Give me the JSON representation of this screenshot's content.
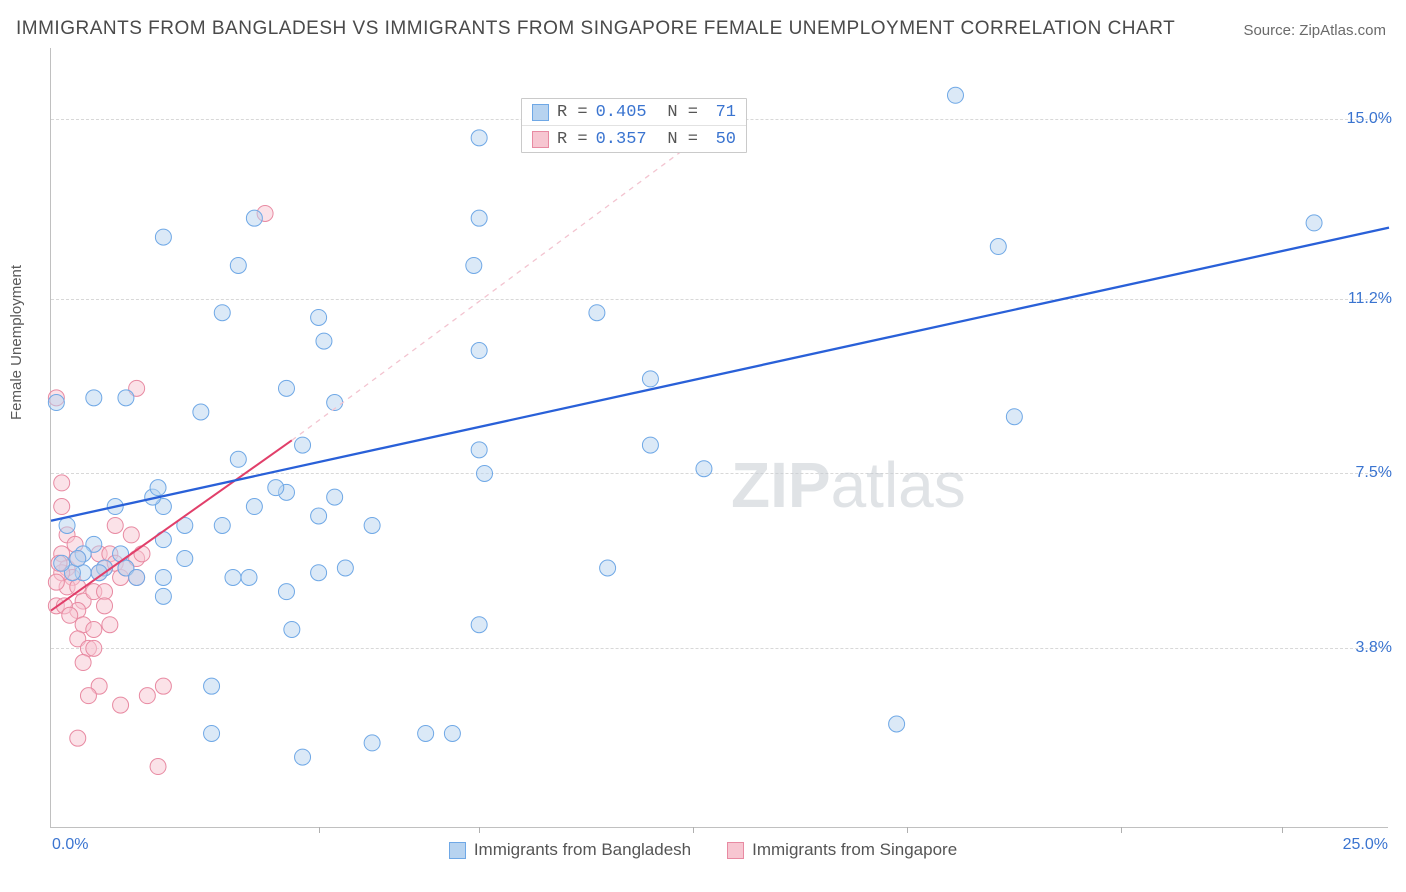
{
  "title": "IMMIGRANTS FROM BANGLADESH VS IMMIGRANTS FROM SINGAPORE FEMALE UNEMPLOYMENT CORRELATION CHART",
  "source": "Source: ZipAtlas.com",
  "ylabel": "Female Unemployment",
  "watermark": {
    "zip": "ZIP",
    "atlas": "atlas"
  },
  "chart": {
    "type": "scatter",
    "xlim": [
      0.0,
      25.0
    ],
    "ylim": [
      0.0,
      16.5
    ],
    "xaxis_label_min": "0.0%",
    "xaxis_label_max": "25.0%",
    "ytick_labels": [
      {
        "v": 3.8,
        "label": "3.8%"
      },
      {
        "v": 7.5,
        "label": "7.5%"
      },
      {
        "v": 11.2,
        "label": "11.2%"
      },
      {
        "v": 15.0,
        "label": "15.0%"
      }
    ],
    "xtick_positions": [
      5.0,
      8.0,
      12.0,
      16.0,
      20.0,
      23.0
    ],
    "background_color": "#ffffff",
    "grid_color": "#d8d8d8",
    "marker_radius": 8,
    "marker_opacity": 0.5,
    "series": [
      {
        "key": "bangladesh",
        "label": "Immigrants from Bangladesh",
        "color_fill": "#b7d3f0",
        "color_stroke": "#6fa8e6",
        "r": "R =",
        "r_value": "0.405",
        "n": "N =",
        "n_value": "71",
        "trend": {
          "x1": 0.0,
          "y1": 6.5,
          "x2": 25.0,
          "y2": 12.7,
          "ext_y2": 15.5,
          "color": "#2960d8",
          "width": 2.3,
          "dash_color": "#b6c9ec"
        },
        "points": [
          [
            16.9,
            15.5
          ],
          [
            23.6,
            12.8
          ],
          [
            17.7,
            12.3
          ],
          [
            18.0,
            8.7
          ],
          [
            8.0,
            14.6
          ],
          [
            8.0,
            12.9
          ],
          [
            7.9,
            11.9
          ],
          [
            10.2,
            10.9
          ],
          [
            8.0,
            10.1
          ],
          [
            8.0,
            8.0
          ],
          [
            8.1,
            7.5
          ],
          [
            8.0,
            4.3
          ],
          [
            7.5,
            2.0
          ],
          [
            11.2,
            9.5
          ],
          [
            11.2,
            8.1
          ],
          [
            12.2,
            7.6
          ],
          [
            10.4,
            5.5
          ],
          [
            6.0,
            1.8
          ],
          [
            4.7,
            1.5
          ],
          [
            5.0,
            10.8
          ],
          [
            5.1,
            10.3
          ],
          [
            4.4,
            9.3
          ],
          [
            5.3,
            9.0
          ],
          [
            4.7,
            8.1
          ],
          [
            4.4,
            7.1
          ],
          [
            5.3,
            7.0
          ],
          [
            5.0,
            6.6
          ],
          [
            4.2,
            7.2
          ],
          [
            5.0,
            5.4
          ],
          [
            5.5,
            5.5
          ],
          [
            4.4,
            5.0
          ],
          [
            4.5,
            4.2
          ],
          [
            3.0,
            3.0
          ],
          [
            3.0,
            2.0
          ],
          [
            2.1,
            12.5
          ],
          [
            2.1,
            6.8
          ],
          [
            1.9,
            7.0
          ],
          [
            2.0,
            7.2
          ],
          [
            2.1,
            6.1
          ],
          [
            2.5,
            6.4
          ],
          [
            2.5,
            5.7
          ],
          [
            2.1,
            5.3
          ],
          [
            2.1,
            4.9
          ],
          [
            2.8,
            8.8
          ],
          [
            3.2,
            10.9
          ],
          [
            3.5,
            11.9
          ],
          [
            3.8,
            12.9
          ],
          [
            3.5,
            7.8
          ],
          [
            3.8,
            6.8
          ],
          [
            3.2,
            6.4
          ],
          [
            3.4,
            5.3
          ],
          [
            3.7,
            5.3
          ],
          [
            1.4,
            9.1
          ],
          [
            1.2,
            6.8
          ],
          [
            1.3,
            5.8
          ],
          [
            1.4,
            5.5
          ],
          [
            1.6,
            5.3
          ],
          [
            1.0,
            5.5
          ],
          [
            0.9,
            5.4
          ],
          [
            0.8,
            9.1
          ],
          [
            0.8,
            6.0
          ],
          [
            0.6,
            5.8
          ],
          [
            0.6,
            5.4
          ],
          [
            0.4,
            5.4
          ],
          [
            0.5,
            5.7
          ],
          [
            0.3,
            6.4
          ],
          [
            0.2,
            5.6
          ],
          [
            0.1,
            9.0
          ],
          [
            15.8,
            2.2
          ],
          [
            7.0,
            2.0
          ],
          [
            6.0,
            6.4
          ]
        ]
      },
      {
        "key": "singapore",
        "label": "Immigrants from Singapore",
        "color_fill": "#f7c6d1",
        "color_stroke": "#e88aa2",
        "r": "R =",
        "r_value": "0.357",
        "n": "N =",
        "n_value": "50",
        "trend": {
          "x1": 0.0,
          "y1": 4.6,
          "x2": 4.5,
          "y2": 8.2,
          "dash_x2": 12.0,
          "dash_y2": 14.5,
          "color": "#e13f6a",
          "width": 2.0,
          "dash_color": "#f3c4d0"
        },
        "points": [
          [
            4.0,
            13.0
          ],
          [
            1.6,
            9.3
          ],
          [
            0.1,
            9.1
          ],
          [
            0.2,
            7.3
          ],
          [
            0.2,
            6.8
          ],
          [
            0.2,
            5.8
          ],
          [
            0.3,
            5.5
          ],
          [
            0.4,
            5.3
          ],
          [
            0.3,
            5.1
          ],
          [
            0.5,
            5.7
          ],
          [
            0.5,
            5.1
          ],
          [
            0.6,
            4.8
          ],
          [
            0.5,
            4.6
          ],
          [
            0.6,
            4.3
          ],
          [
            0.5,
            4.0
          ],
          [
            0.7,
            3.8
          ],
          [
            0.6,
            3.5
          ],
          [
            0.8,
            3.8
          ],
          [
            0.8,
            4.2
          ],
          [
            0.8,
            5.0
          ],
          [
            0.9,
            5.4
          ],
          [
            0.9,
            5.8
          ],
          [
            1.0,
            5.5
          ],
          [
            1.0,
            5.0
          ],
          [
            1.0,
            4.7
          ],
          [
            1.1,
            4.3
          ],
          [
            1.1,
            5.8
          ],
          [
            1.2,
            6.4
          ],
          [
            1.2,
            5.6
          ],
          [
            1.3,
            5.3
          ],
          [
            1.3,
            2.6
          ],
          [
            1.4,
            5.5
          ],
          [
            1.5,
            6.2
          ],
          [
            1.6,
            5.7
          ],
          [
            1.6,
            5.3
          ],
          [
            1.7,
            5.8
          ],
          [
            1.8,
            2.8
          ],
          [
            2.0,
            1.3
          ],
          [
            2.1,
            3.0
          ],
          [
            0.9,
            3.0
          ],
          [
            0.7,
            2.8
          ],
          [
            0.5,
            1.9
          ],
          [
            0.2,
            5.4
          ],
          [
            0.3,
            6.2
          ],
          [
            0.15,
            5.6
          ],
          [
            0.1,
            5.2
          ],
          [
            0.1,
            4.7
          ],
          [
            0.25,
            4.7
          ],
          [
            0.35,
            4.5
          ],
          [
            0.45,
            6.0
          ]
        ]
      }
    ]
  }
}
